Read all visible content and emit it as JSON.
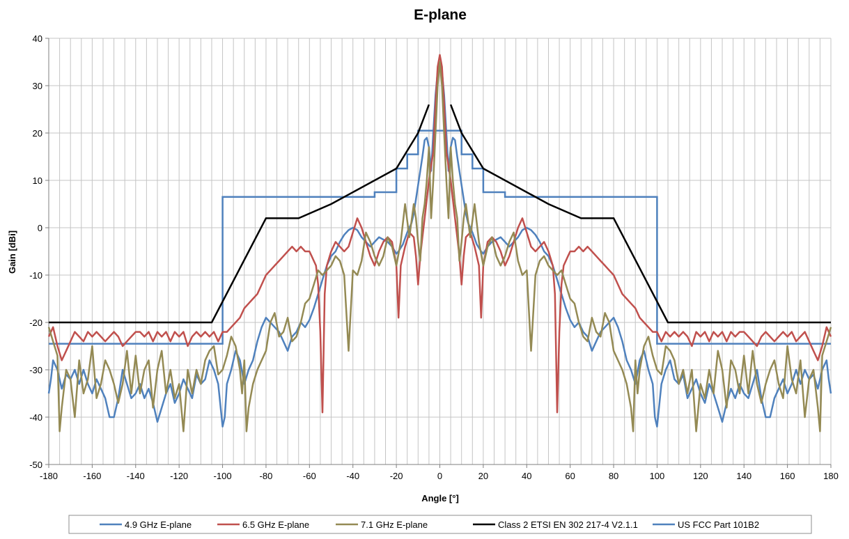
{
  "chart_data": {
    "type": "line",
    "title": "E-plane",
    "xlabel": "Angle [°]",
    "ylabel": "Gain [dBi]",
    "xlim": [
      -180,
      180
    ],
    "ylim": [
      -50,
      40
    ],
    "x_ticks": [
      -180,
      -160,
      -140,
      -120,
      -100,
      -80,
      -60,
      -40,
      -20,
      0,
      20,
      40,
      60,
      80,
      100,
      120,
      140,
      160,
      180
    ],
    "y_ticks": [
      -50,
      -40,
      -30,
      -20,
      -10,
      0,
      10,
      20,
      30,
      40
    ],
    "x_tick_labels": [
      "-180",
      "-160",
      "-140",
      "-120",
      "-100",
      "-80",
      "-60",
      "-40",
      "-20",
      "0",
      "20",
      "40",
      "60",
      "80",
      "100",
      "120",
      "140",
      "160",
      "180"
    ],
    "y_tick_labels": [
      "-50",
      "-40",
      "-30",
      "-20",
      "-10",
      "0",
      "10",
      "20",
      "30",
      "40"
    ],
    "grid": true,
    "minor_x_grid_step": 5,
    "legend_position": "bottom",
    "symmetric_about_zero": true,
    "series": [
      {
        "name": "4.9 GHz E-plane",
        "color": "#4F81BD",
        "x": [
          0,
          1,
          2,
          3,
          4,
          5,
          6,
          7,
          8,
          9,
          10,
          11,
          12,
          13,
          14,
          15,
          17,
          19,
          20,
          22,
          24,
          26,
          28,
          30,
          32,
          34,
          36,
          38,
          40,
          42,
          44,
          46,
          48,
          50,
          52,
          54,
          56,
          58,
          60,
          62,
          64,
          66,
          68,
          70,
          72,
          74,
          76,
          78,
          80,
          82,
          84,
          86,
          88,
          90,
          92,
          94,
          96,
          98,
          99,
          100,
          102,
          104,
          106,
          108,
          110,
          112,
          114,
          116,
          118,
          120,
          122,
          124,
          126,
          128,
          130,
          132,
          134,
          136,
          138,
          140,
          142,
          144,
          146,
          148,
          150,
          152,
          154,
          156,
          158,
          160,
          162,
          164,
          166,
          168,
          170,
          172,
          174,
          176,
          178,
          179,
          180
        ],
        "values": [
          35,
          33,
          28,
          20,
          12,
          17,
          19,
          18.5,
          15,
          12,
          9,
          6,
          3,
          1,
          0,
          -1,
          -3.5,
          -5,
          -5.5,
          -4,
          -3,
          -2.5,
          -2,
          -3,
          -4,
          -3,
          -2,
          -0.5,
          0,
          -0.5,
          -1.5,
          -3,
          -5,
          -6,
          -8,
          -11,
          -14,
          -17,
          -19.5,
          -21,
          -20,
          -22,
          -23,
          -26,
          -24,
          -22,
          -21,
          -20,
          -19,
          -21,
          -24,
          -28,
          -30,
          -33,
          -28,
          -26,
          -30,
          -33,
          -40,
          -42,
          -33,
          -30,
          -28,
          -32,
          -33,
          -31,
          -36,
          -34,
          -32,
          -35,
          -37,
          -33,
          -35,
          -38,
          -41,
          -37,
          -34,
          -36,
          -33,
          -35,
          -36,
          -33,
          -30,
          -36,
          -40,
          -40,
          -36,
          -34,
          -32,
          -35,
          -33,
          -30,
          -33,
          -30,
          -32,
          -31,
          -34,
          -30,
          -28,
          -32,
          -35
        ]
      },
      {
        "name": "6.5 GHz E-plane",
        "color": "#C0504D",
        "x": [
          0,
          1,
          2,
          3,
          4,
          5,
          6,
          7,
          8,
          9,
          10,
          11,
          12,
          14,
          16,
          18,
          19,
          20,
          22,
          24,
          26,
          28,
          30,
          32,
          34,
          36,
          38,
          40,
          42,
          44,
          46,
          48,
          50,
          52,
          53,
          54,
          55,
          56,
          57,
          58,
          59,
          60,
          62,
          64,
          66,
          68,
          70,
          72,
          74,
          76,
          78,
          80,
          82,
          84,
          86,
          88,
          90,
          92,
          94,
          96,
          98,
          100,
          102,
          104,
          106,
          108,
          110,
          112,
          114,
          116,
          118,
          120,
          122,
          124,
          126,
          128,
          130,
          132,
          134,
          136,
          138,
          140,
          142,
          144,
          146,
          148,
          150,
          152,
          154,
          156,
          158,
          160,
          162,
          164,
          166,
          168,
          170,
          172,
          174,
          176,
          178,
          180
        ],
        "values": [
          36.5,
          34,
          26,
          16,
          13,
          10,
          6,
          2,
          -2,
          -6,
          -12,
          -6,
          -2,
          -1,
          -4,
          -8,
          -19,
          -8,
          -3,
          -2,
          -3,
          -5,
          -8,
          -6,
          -3,
          0,
          2,
          -1,
          -4,
          -5,
          -4,
          -3,
          -5,
          -8,
          -14,
          -39,
          -22,
          -12,
          -8,
          -7,
          -6,
          -5,
          -5,
          -4,
          -5,
          -4,
          -5,
          -6,
          -7,
          -8,
          -9,
          -10,
          -12,
          -14,
          -15,
          -16,
          -17,
          -19,
          -20,
          -21,
          -22,
          -22,
          -24,
          -22,
          -23,
          -22,
          -23,
          -22,
          -23,
          -25,
          -22,
          -23,
          -22,
          -24,
          -22,
          -23,
          -22,
          -24,
          -22,
          -23,
          -22,
          -22,
          -23,
          -24,
          -25,
          -23,
          -22,
          -23,
          -24,
          -23,
          -22,
          -23,
          -22,
          -24,
          -23,
          -22,
          -24,
          -26,
          -28,
          -25,
          -21,
          -23
        ]
      },
      {
        "name": "7.1 GHz E-plane",
        "color": "#948A54",
        "x": [
          0,
          1,
          2,
          3,
          4,
          5,
          6,
          7,
          8,
          9,
          10,
          11,
          12,
          14,
          16,
          18,
          20,
          22,
          24,
          26,
          28,
          30,
          32,
          34,
          36,
          38,
          40,
          42,
          44,
          46,
          48,
          50,
          52,
          54,
          56,
          58,
          60,
          62,
          64,
          66,
          68,
          70,
          72,
          74,
          76,
          78,
          80,
          82,
          84,
          86,
          88,
          89,
          90,
          91,
          92,
          94,
          96,
          98,
          100,
          102,
          104,
          106,
          108,
          110,
          112,
          114,
          116,
          118,
          120,
          122,
          124,
          126,
          128,
          130,
          132,
          134,
          136,
          138,
          140,
          142,
          144,
          146,
          148,
          150,
          152,
          154,
          156,
          158,
          160,
          162,
          164,
          166,
          168,
          170,
          172,
          174,
          175,
          176,
          178,
          180
        ],
        "values": [
          35,
          30,
          20,
          10,
          2,
          17,
          10,
          5,
          2,
          -7,
          -3,
          2,
          5,
          -2,
          5,
          -3,
          -8,
          -4,
          -2,
          -6,
          -8,
          -6,
          -3,
          -1,
          -7,
          -10,
          -9,
          -26,
          -10,
          -7,
          -6,
          -8,
          -9,
          -10,
          -9,
          -12,
          -15,
          -16,
          -20,
          -23,
          -24,
          -19,
          -22,
          -23,
          -18,
          -20,
          -26,
          -28,
          -30,
          -33,
          -38,
          -43,
          -28,
          -35,
          -30,
          -25,
          -23,
          -27,
          -30,
          -31,
          -25,
          -26,
          -28,
          -33,
          -30,
          -35,
          -30,
          -43,
          -33,
          -36,
          -30,
          -35,
          -26,
          -30,
          -38,
          -28,
          -30,
          -35,
          -27,
          -35,
          -26,
          -33,
          -37,
          -33,
          -30,
          -28,
          -33,
          -36,
          -25,
          -32,
          -35,
          -28,
          -40,
          -32,
          -30,
          -38,
          -43,
          -27,
          -24,
          -21
        ]
      },
      {
        "name": "Class 2 ETSI EN 302 217-4 V2.1.1",
        "color": "#000000",
        "x": [
          5,
          10,
          20,
          50,
          65,
          80,
          105,
          180
        ],
        "values": [
          26,
          20,
          12.5,
          5,
          2,
          2,
          -20,
          -20
        ]
      },
      {
        "name": "US FCC Part 101B2",
        "color": "#4F81BD",
        "x": [
          0,
          5,
          5,
          10,
          10,
          15,
          15,
          20,
          20,
          30,
          30,
          100,
          100,
          180
        ],
        "values": [
          20.5,
          20.5,
          20.5,
          20.5,
          15.5,
          15.5,
          12.5,
          12.5,
          7.5,
          7.5,
          6.5,
          6.5,
          -24.5,
          -24.5
        ]
      }
    ]
  }
}
